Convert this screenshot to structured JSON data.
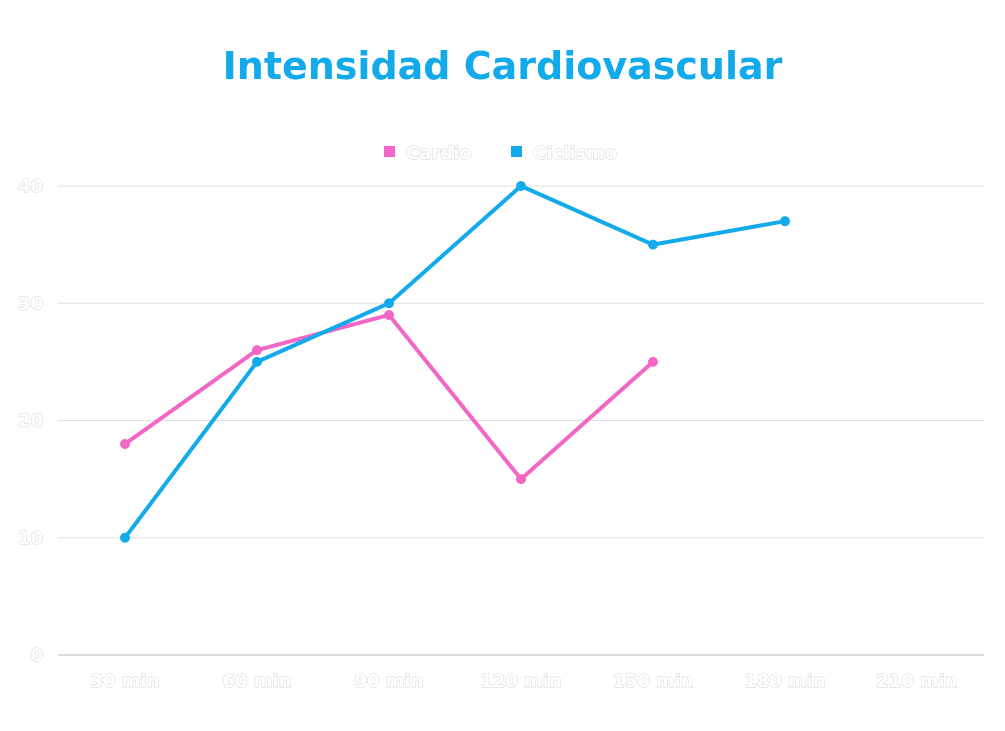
{
  "chart_data": {
    "type": "line",
    "title": "Intensidad Cardiovascular",
    "categories": [
      "30 min",
      "60 min",
      "90 min",
      "120 min",
      "150 min",
      "180 min",
      "210 min"
    ],
    "series": [
      {
        "name": "Cardio",
        "color": "#f266c6",
        "values": [
          18,
          26,
          29,
          15,
          25,
          null,
          null
        ]
      },
      {
        "name": "Ciclismo",
        "color": "#13aaeb",
        "values": [
          10,
          25,
          30,
          40,
          35,
          37,
          null
        ]
      }
    ],
    "yticks": [
      0,
      10,
      20,
      30,
      40
    ],
    "ylim": [
      0,
      40
    ],
    "grid": true,
    "legend": "top-center"
  }
}
